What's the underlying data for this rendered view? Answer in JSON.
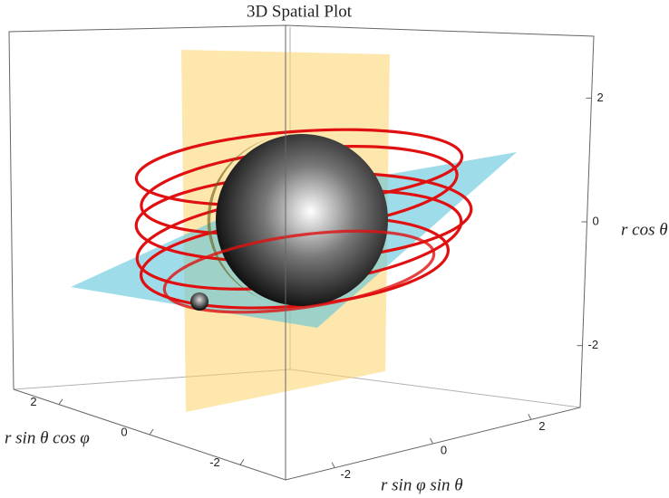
{
  "chart_data": {
    "type": "surface3d",
    "title": "3D Spatial Plot",
    "xlabel": "r sin θ cos φ",
    "ylabel": "r sin φ sin θ",
    "zlabel": "r cos θ",
    "xlim": [
      -3,
      3
    ],
    "ylim": [
      -3,
      3
    ],
    "zlim": [
      -3,
      3
    ],
    "xticks": [
      2,
      0,
      -2
    ],
    "yticks": [
      -2,
      0,
      2
    ],
    "zticks": [
      2,
      0,
      -2
    ]
  }
}
